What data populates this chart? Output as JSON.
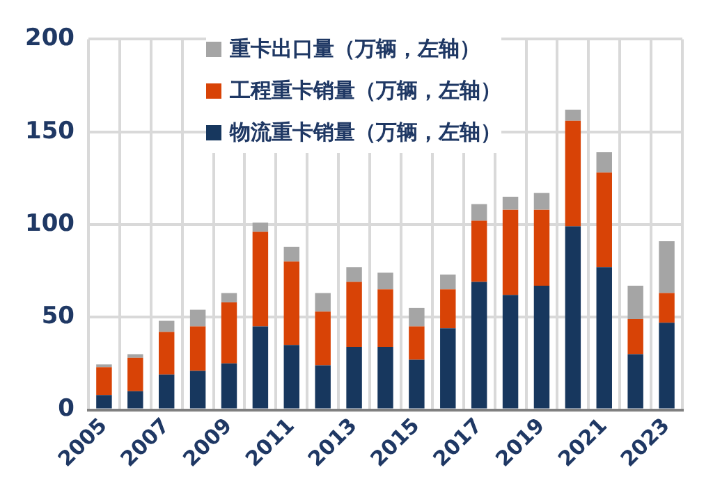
{
  "chart_data": {
    "type": "bar",
    "stacked": true,
    "categories": [
      "2005",
      null,
      "2007",
      null,
      "2009",
      null,
      "2011",
      null,
      "2013",
      null,
      "2015",
      null,
      "2017",
      null,
      "2019",
      null,
      "2021",
      null,
      "2023"
    ],
    "series": [
      {
        "name": "物流重卡销量（万辆，左轴）",
        "color": "#17375e",
        "values": [
          8,
          10,
          19,
          21,
          25,
          45,
          35,
          24,
          34,
          34,
          27,
          44,
          69,
          62,
          67,
          99,
          77,
          30,
          47
        ]
      },
      {
        "name": "工程重卡销量（万辆，左轴）",
        "color": "#d84306",
        "values": [
          15,
          18,
          23,
          24,
          33,
          51,
          45,
          29,
          35,
          31,
          18,
          21,
          33,
          46,
          41,
          57,
          51,
          19,
          16
        ]
      },
      {
        "name": "重卡出口量（万辆，左轴）",
        "color": "#a5a5a5",
        "values": [
          1.5,
          2,
          6,
          9,
          5,
          5,
          8,
          10,
          8,
          9,
          10,
          8,
          9,
          7,
          9,
          6,
          11,
          18,
          28
        ]
      }
    ],
    "ylim": [
      0,
      200
    ],
    "yticks": [
      0,
      50,
      100,
      150,
      200
    ],
    "grid": true,
    "legend": "top"
  }
}
